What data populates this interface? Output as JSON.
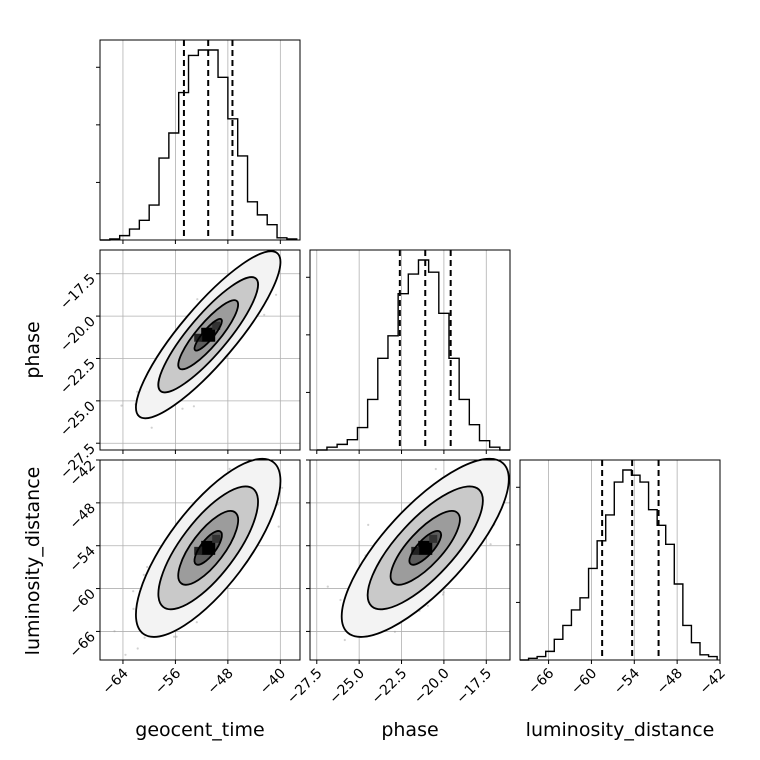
{
  "chart_data": {
    "type": "corner",
    "parameters": [
      "geocent_time",
      "phase",
      "luminosity_distance"
    ],
    "axis_labels": {
      "geocent_time": "geocent_time",
      "phase": "phase",
      "luminosity_distance": "luminosity_distance"
    },
    "ranges": {
      "geocent_time": [
        -67.5,
        -37.0
      ],
      "phase": [
        -27.9,
        -16.1
      ],
      "luminosity_distance": [
        -70.0,
        -42.0
      ]
    },
    "ticks": {
      "geocent_time": [
        -64,
        -56,
        -48,
        -40
      ],
      "phase": [
        -27.5,
        -25.0,
        -22.5,
        -20.0,
        -17.5
      ],
      "luminosity_distance": [
        -66,
        -60,
        -54,
        -48,
        -42
      ]
    },
    "tick_labels": {
      "geocent_time": [
        "−64",
        "−56",
        "−48",
        "−40"
      ],
      "phase": [
        "−27.5",
        "−25.0",
        "−22.5",
        "−20.0",
        "−17.5"
      ],
      "luminosity_distance": [
        "−66",
        "−60",
        "−54",
        "−48",
        "−42"
      ]
    },
    "quantiles": {
      "geocent_time": [
        -54.7,
        -51.0,
        -47.3
      ],
      "phase": [
        -22.6,
        -21.1,
        -19.6
      ],
      "luminosity_distance": [
        -58.5,
        -54.3,
        -50.6
      ]
    },
    "histograms": {
      "geocent_time": {
        "edges": [
          -67.5,
          -66,
          -64.5,
          -63,
          -61.5,
          -60,
          -58.5,
          -57,
          -55.5,
          -54,
          -52.5,
          -51,
          -49.5,
          -48,
          -46.5,
          -45,
          -43.5,
          -42,
          -40.5,
          -39,
          -37.5
        ],
        "counts": [
          0,
          1,
          4,
          10,
          18,
          32,
          75,
          98,
          135,
          169,
          174,
          174,
          149,
          111,
          77,
          35,
          23,
          14,
          2,
          1
        ]
      },
      "phase": {
        "edges": [
          -27.5,
          -26.9,
          -26.3,
          -25.7,
          -25.1,
          -24.5,
          -23.9,
          -23.3,
          -22.7,
          -22.1,
          -21.5,
          -20.9,
          -20.3,
          -19.7,
          -19.1,
          -18.5,
          -17.9,
          -17.3,
          -16.7,
          -16.1
        ],
        "counts": [
          0,
          3,
          6,
          11,
          24,
          54,
          98,
          122,
          167,
          188,
          203,
          190,
          146,
          98,
          54,
          27,
          10,
          3,
          0
        ]
      },
      "luminosity_distance": {
        "edges": [
          -70,
          -68.8,
          -67.6,
          -66.4,
          -65.2,
          -64,
          -62.8,
          -61.6,
          -60.4,
          -59.2,
          -58,
          -56.8,
          -55.6,
          -54.4,
          -53.2,
          -52,
          -50.8,
          -49.6,
          -48.4,
          -47.2,
          -46,
          -44.8,
          -43.6,
          -42.4
        ],
        "counts": [
          0,
          1,
          2,
          5,
          12,
          20,
          29,
          36,
          53,
          69,
          84,
          103,
          110,
          107,
          103,
          87,
          78,
          67,
          44,
          20,
          10,
          3,
          2
        ]
      }
    },
    "pairs": [
      {
        "x": "geocent_time",
        "y": "phase",
        "center": [
          -51.0,
          -21.1
        ],
        "sd": [
          3.8,
          1.7
        ],
        "corr": 0.87
      },
      {
        "x": "geocent_time",
        "y": "luminosity_distance",
        "center": [
          -51.0,
          -54.3
        ],
        "sd": [
          3.8,
          4.3
        ],
        "corr": 0.75
      },
      {
        "x": "phase",
        "y": "luminosity_distance",
        "center": [
          -21.1,
          -54.3
        ],
        "sd": [
          1.7,
          4.3
        ],
        "corr": 0.77
      }
    ],
    "grid": true,
    "legend": "none",
    "colors": {
      "line": "#000000",
      "grid": "#b0b0b0",
      "points": "#9a9a9a"
    }
  }
}
